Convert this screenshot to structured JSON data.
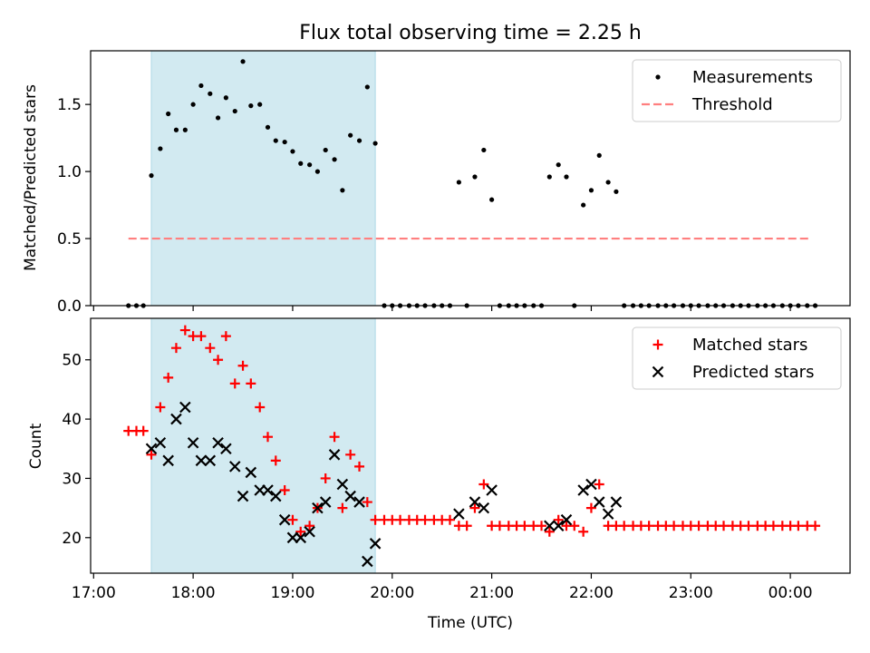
{
  "title": "Flux total observing time = 2.25 h",
  "colors": {
    "measurement": "#000000",
    "threshold": "#ff7f7f",
    "matched": "#ff0000",
    "predicted": "#000000",
    "observing_span": "#add8e6"
  },
  "chart_data": [
    {
      "type": "scatter",
      "panel": "top",
      "ylabel": "Matched/Predicted stars",
      "xlim": [
        16.97,
        24.6
      ],
      "ylim": [
        0,
        1.9
      ],
      "yticks": [
        0.0,
        0.5,
        1.0,
        1.5
      ],
      "ytick_labels": [
        "0.0",
        "0.5",
        "1.0",
        "1.5"
      ],
      "xticks": [
        17,
        18,
        19,
        20,
        21,
        22,
        23,
        24
      ],
      "shaded_span": [
        17.58,
        19.83
      ],
      "legend_position": "top-right",
      "series": [
        {
          "name": "Measurements",
          "marker": "dot",
          "x": [
            17.35,
            17.43,
            17.5,
            17.58,
            17.67,
            17.75,
            17.83,
            17.92,
            18.0,
            18.08,
            18.17,
            18.25,
            18.33,
            18.42,
            18.5,
            18.58,
            18.67,
            18.75,
            18.83,
            18.92,
            19.0,
            19.08,
            19.17,
            19.25,
            19.33,
            19.42,
            19.5,
            19.58,
            19.67,
            19.75,
            19.83,
            19.92,
            20.0,
            20.08,
            20.17,
            20.25,
            20.33,
            20.42,
            20.5,
            20.58,
            20.67,
            20.75,
            20.83,
            20.92,
            21.0,
            21.08,
            21.17,
            21.25,
            21.33,
            21.42,
            21.5,
            21.58,
            21.67,
            21.75,
            21.83,
            21.92,
            22.0,
            22.08,
            22.17,
            22.25,
            22.33,
            22.42,
            22.5,
            22.58,
            22.67,
            22.75,
            22.83,
            22.92,
            23.0,
            23.08,
            23.17,
            23.25,
            23.33,
            23.42,
            23.5,
            23.58,
            23.67,
            23.75,
            23.83,
            23.92,
            24.0,
            24.08,
            24.17,
            24.25
          ],
          "y": [
            0,
            0,
            0,
            0.97,
            1.17,
            1.43,
            1.31,
            1.31,
            1.5,
            1.64,
            1.58,
            1.4,
            1.55,
            1.45,
            1.82,
            1.49,
            1.5,
            1.33,
            1.23,
            1.22,
            1.15,
            1.06,
            1.05,
            1.0,
            1.16,
            1.09,
            0.86,
            1.27,
            1.23,
            1.63,
            1.21,
            0,
            0,
            0,
            0,
            0,
            0,
            0,
            0,
            0,
            0.92,
            0,
            0.96,
            1.16,
            0.79,
            0,
            0,
            0,
            0,
            0,
            0,
            0.96,
            1.05,
            0.96,
            0,
            0.75,
            0.86,
            1.12,
            0.92,
            0.85,
            0,
            0,
            0,
            0,
            0,
            0,
            0,
            0,
            0,
            0,
            0,
            0,
            0,
            0,
            0,
            0,
            0,
            0,
            0,
            0,
            0,
            0,
            0,
            0
          ]
        },
        {
          "name": "Threshold",
          "style": "dashed",
          "x": [
            17.35,
            24.2
          ],
          "y": [
            0.5,
            0.5
          ]
        }
      ]
    },
    {
      "type": "scatter",
      "panel": "bottom",
      "xlabel": "Time (UTC)",
      "ylabel": "Count",
      "xlim": [
        16.97,
        24.6
      ],
      "ylim": [
        14,
        57
      ],
      "yticks": [
        20,
        30,
        40,
        50
      ],
      "ytick_labels": [
        "20",
        "30",
        "40",
        "50"
      ],
      "xticks": [
        17,
        18,
        19,
        20,
        21,
        22,
        23,
        24
      ],
      "xtick_labels": [
        "17:00",
        "18:00",
        "19:00",
        "20:00",
        "21:00",
        "22:00",
        "23:00",
        "00:00"
      ],
      "shaded_span": [
        17.58,
        19.83
      ],
      "legend_position": "top-right",
      "series": [
        {
          "name": "Matched stars",
          "marker": "plus",
          "x": [
            17.35,
            17.43,
            17.5,
            17.58,
            17.67,
            17.75,
            17.83,
            17.92,
            18.0,
            18.08,
            18.17,
            18.25,
            18.33,
            18.42,
            18.5,
            18.58,
            18.67,
            18.75,
            18.83,
            18.92,
            19.0,
            19.08,
            19.17,
            19.25,
            19.33,
            19.42,
            19.5,
            19.58,
            19.67,
            19.75,
            19.83,
            19.92,
            20.0,
            20.08,
            20.17,
            20.25,
            20.33,
            20.42,
            20.5,
            20.58,
            20.67,
            20.75,
            20.83,
            20.92,
            21.0,
            21.08,
            21.17,
            21.25,
            21.33,
            21.42,
            21.5,
            21.58,
            21.67,
            21.75,
            21.83,
            21.92,
            22.0,
            22.08,
            22.17,
            22.25,
            22.33,
            22.42,
            22.5,
            22.58,
            22.67,
            22.75,
            22.83,
            22.92,
            23.0,
            23.08,
            23.17,
            23.25,
            23.33,
            23.42,
            23.5,
            23.58,
            23.67,
            23.75,
            23.83,
            23.92,
            24.0,
            24.08,
            24.17,
            24.25
          ],
          "y": [
            38,
            38,
            38,
            34,
            42,
            47,
            52,
            55,
            54,
            54,
            52,
            50,
            54,
            46,
            49,
            46,
            42,
            37,
            33,
            28,
            23,
            21,
            22,
            25,
            30,
            37,
            25,
            34,
            32,
            26,
            23,
            23,
            23,
            23,
            23,
            23,
            23,
            23,
            23,
            23,
            22,
            22,
            25,
            29,
            22,
            22,
            22,
            22,
            22,
            22,
            22,
            21,
            23,
            22,
            22,
            21,
            25,
            29,
            22,
            22,
            22,
            22,
            22,
            22,
            22,
            22,
            22,
            22,
            22,
            22,
            22,
            22,
            22,
            22,
            22,
            22,
            22,
            22,
            22,
            22,
            22,
            22,
            22,
            22
          ]
        },
        {
          "name": "Predicted stars",
          "marker": "x",
          "x": [
            17.58,
            17.67,
            17.75,
            17.83,
            17.92,
            18.0,
            18.08,
            18.17,
            18.25,
            18.33,
            18.42,
            18.5,
            18.58,
            18.67,
            18.75,
            18.83,
            18.92,
            19.0,
            19.08,
            19.17,
            19.25,
            19.33,
            19.42,
            19.5,
            19.58,
            19.67,
            19.75,
            19.83,
            20.67,
            20.83,
            20.92,
            21.0,
            21.58,
            21.67,
            21.75,
            21.92,
            22.0,
            22.08,
            22.17,
            22.25
          ],
          "y": [
            35,
            36,
            33,
            40,
            42,
            36,
            33,
            33,
            36,
            35,
            32,
            27,
            31,
            28,
            28,
            27,
            23,
            20,
            20,
            21,
            25,
            26,
            34,
            29,
            27,
            26,
            16,
            19,
            24,
            26,
            25,
            28,
            22,
            22,
            23,
            28,
            29,
            26,
            24,
            26
          ]
        }
      ]
    }
  ]
}
